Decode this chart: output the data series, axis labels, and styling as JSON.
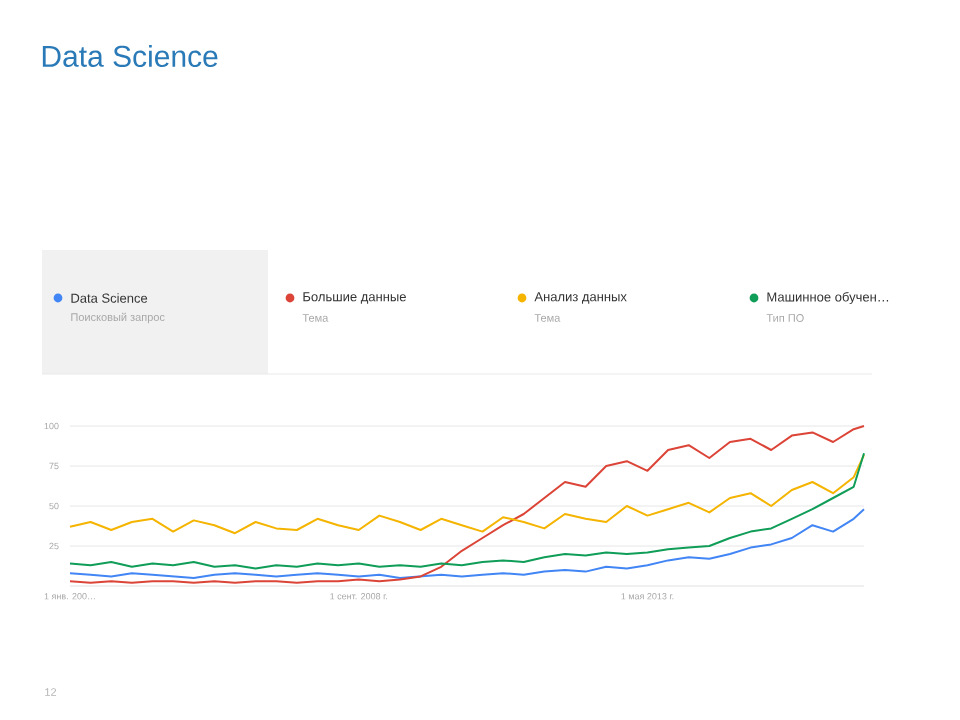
{
  "chart_data": {
    "type": "line",
    "title": "Data Science",
    "x": [
      "2004-01",
      "2004-05",
      "2004-09",
      "2005-01",
      "2005-05",
      "2005-09",
      "2006-01",
      "2006-05",
      "2006-09",
      "2007-01",
      "2007-05",
      "2007-09",
      "2008-01",
      "2008-05",
      "2008-09",
      "2009-01",
      "2009-05",
      "2009-09",
      "2010-01",
      "2010-05",
      "2010-09",
      "2011-01",
      "2011-05",
      "2011-09",
      "2012-01",
      "2012-05",
      "2012-09",
      "2013-01",
      "2013-05",
      "2013-09",
      "2014-01",
      "2014-05",
      "2014-09",
      "2015-01",
      "2015-05",
      "2015-09",
      "2016-01",
      "2016-05",
      "2016-09",
      "2016-11"
    ],
    "series": [
      {
        "name": "Data Science",
        "color": "#4285f4",
        "values": [
          8,
          7,
          6,
          8,
          7,
          6,
          5,
          7,
          8,
          7,
          6,
          7,
          8,
          7,
          6,
          7,
          5,
          6,
          7,
          6,
          7,
          8,
          7,
          9,
          10,
          9,
          12,
          11,
          13,
          16,
          18,
          17,
          20,
          24,
          26,
          30,
          38,
          34,
          42,
          48
        ]
      },
      {
        "name": "Большие данные",
        "color": "#db4437",
        "values": [
          3,
          2,
          3,
          2,
          3,
          3,
          2,
          3,
          2,
          3,
          3,
          2,
          3,
          3,
          4,
          3,
          4,
          6,
          12,
          22,
          30,
          38,
          45,
          55,
          65,
          62,
          75,
          78,
          72,
          85,
          88,
          80,
          90,
          92,
          85,
          94,
          96,
          90,
          98,
          100
        ]
      },
      {
        "name": "Анализ данных",
        "color": "#f4b400",
        "values": [
          37,
          40,
          35,
          40,
          42,
          34,
          41,
          38,
          33,
          40,
          36,
          35,
          42,
          38,
          35,
          44,
          40,
          35,
          42,
          38,
          34,
          43,
          40,
          36,
          45,
          42,
          40,
          50,
          44,
          48,
          52,
          46,
          55,
          58,
          50,
          60,
          65,
          58,
          68,
          82
        ]
      },
      {
        "name": "Машинное обучен…",
        "color": "#0f9d58",
        "values": [
          14,
          13,
          15,
          12,
          14,
          13,
          15,
          12,
          13,
          11,
          13,
          12,
          14,
          13,
          14,
          12,
          13,
          12,
          14,
          13,
          15,
          16,
          15,
          18,
          20,
          19,
          21,
          20,
          21,
          23,
          24,
          25,
          30,
          34,
          36,
          42,
          48,
          55,
          62,
          83
        ]
      }
    ],
    "xlim": [
      "2004-01",
      "2016-11"
    ],
    "xticks": [
      {
        "value": "2004-01",
        "label": "1 янв. 200…"
      },
      {
        "value": "2008-09",
        "label": "1 сент. 2008 г."
      },
      {
        "value": "2013-05",
        "label": "1 мая 2013 г."
      }
    ],
    "ylim": [
      0,
      100
    ],
    "yticks": [
      25,
      50,
      75,
      100
    ],
    "grid": "y",
    "legend": "top",
    "line_style": "solid",
    "marker": "none",
    "annotations": [
      "Поисковый запрос",
      "Тема",
      "Тема",
      "Тип ПО",
      "12"
    ]
  }
}
